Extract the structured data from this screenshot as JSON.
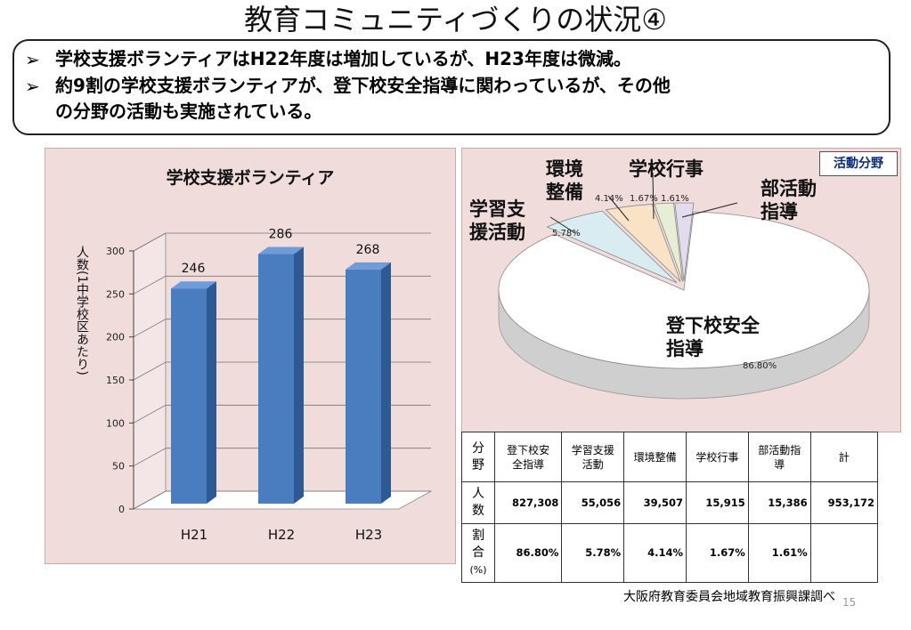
{
  "title": "教育コミュニティづくりの状況④",
  "summary": {
    "bullet_char": "➢",
    "line1": "学校支援ボランティアはH22年度は増加しているが、H23年度は微減。",
    "line2": "約9割の学校支援ボランティアが、登下校安全指導に関わっているが、その他",
    "line3": "の分野の活動も実施されている。"
  },
  "chart_data": [
    {
      "type": "bar",
      "title": "学校支援ボランティア",
      "ylabel": "人数(1中学校区あたり)",
      "xlabel": "",
      "categories": [
        "H21",
        "H22",
        "H23"
      ],
      "values": [
        246,
        286,
        268
      ],
      "ylim": [
        0,
        300
      ],
      "yticks": [
        0,
        50,
        100,
        150,
        200,
        250,
        300
      ],
      "grid": true,
      "color": "#4a7cc0"
    },
    {
      "type": "pie",
      "title": "",
      "legend_label": "活動分野",
      "slices": [
        {
          "label": "登下校安全指導",
          "value": 86.8,
          "display": "86.80%",
          "color": "#ffffff"
        },
        {
          "label": "学習支援活動",
          "value": 5.78,
          "display": "5.78%",
          "color": "#d9ecf2"
        },
        {
          "label": "環境整備",
          "value": 4.14,
          "display": "4.14%",
          "color": "#f9e2c6"
        },
        {
          "label": "学校行事",
          "value": 1.67,
          "display": "1.67%",
          "color": "#e6efd6"
        },
        {
          "label": "部活動指導",
          "value": 1.61,
          "display": "1.61%",
          "color": "#e2dcee"
        }
      ]
    },
    {
      "type": "table",
      "header_corner": "分野",
      "columns": [
        "登下校安全指導",
        "学習支援活動",
        "環境整備",
        "学校行事",
        "部活動指導",
        "計"
      ],
      "column_headers": [
        [
          "登下校安",
          "全指導"
        ],
        [
          "学習支援",
          "活動"
        ],
        [
          "環境整備"
        ],
        [
          "学校行事"
        ],
        [
          "部活動指",
          "導"
        ],
        [
          "計"
        ]
      ],
      "rows": [
        {
          "label": "人数",
          "label_lines": [
            "人",
            "数"
          ],
          "values": [
            "827,308",
            "55,056",
            "39,507",
            "15,915",
            "15,386",
            "953,172"
          ]
        },
        {
          "label": "割合(%)",
          "label_lines": [
            "割",
            "合",
            "(%)"
          ],
          "values": [
            "86.80%",
            "5.78%",
            "4.14%",
            "1.67%",
            "1.61%",
            ""
          ]
        }
      ]
    }
  ],
  "pie_labels": {
    "main": [
      "登下校安全",
      "指導"
    ],
    "study": [
      "学習支",
      "援活動"
    ],
    "env": [
      "環境",
      "整備"
    ],
    "event": "学校行事",
    "club": [
      "部活動",
      "指導"
    ]
  },
  "source": "大阪府教育委員会地域教育振興課調べ",
  "page_number": "15"
}
